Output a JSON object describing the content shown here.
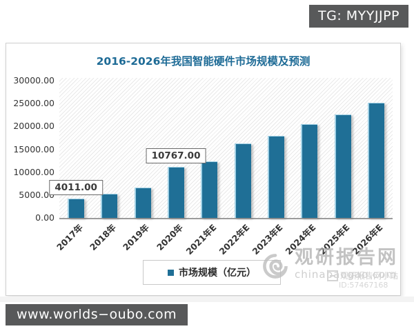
{
  "page": {
    "tg_badge": "TG: MYYJJPP",
    "site_badge": "www.worlds−oubo.com"
  },
  "chart_data": {
    "type": "bar",
    "title": "2016-2026年我国智能硬件市场规模及预测",
    "categories": [
      "2017年",
      "2018年",
      "2019年",
      "2020年",
      "2021年E",
      "2022年E",
      "2023年E",
      "2024年E",
      "2025年E",
      "2026年E"
    ],
    "values": [
      4011,
      5000,
      6300,
      10767,
      12000,
      15800,
      17400,
      19900,
      22000,
      24500
    ],
    "data_labels": [
      {
        "index": 0,
        "label": "4011.00"
      },
      {
        "index": 3,
        "label": "10767.00"
      }
    ],
    "y_ticks": [
      "30000.00",
      "25000.00",
      "20000.00",
      "15000.00",
      "10000.00",
      "5000.00",
      "0.00"
    ],
    "ylim": [
      0,
      30000
    ],
    "xlabel": "",
    "ylabel": "",
    "legend": [
      "市场规模（亿元）"
    ],
    "legend_position": "bottom",
    "grid": false
  },
  "legend": {
    "label": "市场规模（亿元）"
  },
  "watermark": {
    "site_name": "观研报告网",
    "site_domain": "chinabaogao.com",
    "station_name": "观研报告网小站",
    "station_id": "ID:57467168"
  },
  "colors": {
    "bar": "#1f6f96",
    "bar_edge": "#a3d2e6",
    "title": "#1e6b96",
    "badge_bg": "#58595a",
    "watermark_gray": "#b3b3b3"
  }
}
